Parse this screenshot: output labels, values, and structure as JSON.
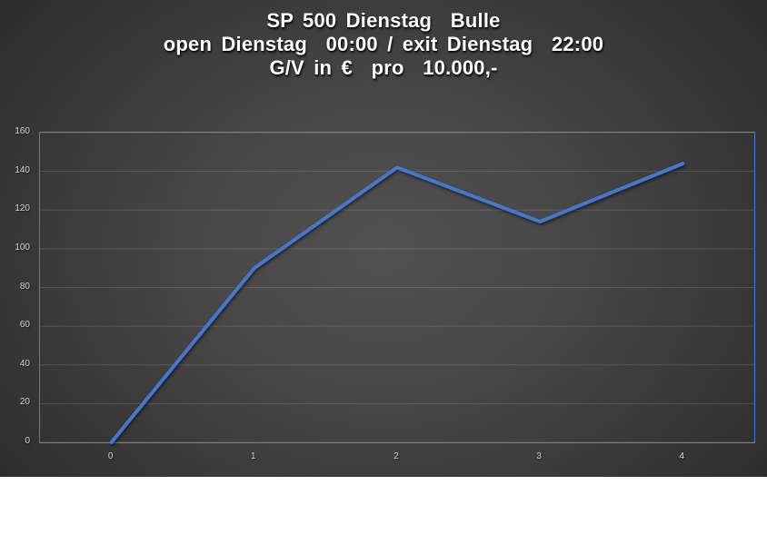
{
  "title": {
    "lines": [
      "SP 500 Dienstag  Bulle",
      "open Dienstag  00:00 / exit Dienstag  22:00",
      "G/V in €  pro  10.000,-"
    ]
  },
  "colors": {
    "title_text": "#FFFFFF",
    "tick_label": "#D6D6D6",
    "line": "#4676CE",
    "plot_border": "#4A7CD6",
    "gridline": "rgba(255,255,255,0.14)",
    "slide_background_center": "#515151",
    "slide_background_edge": "#262626"
  },
  "chart_data": {
    "type": "line",
    "title": "SP 500 Dienstag Bulle — open Dienstag 00:00 / exit Dienstag 22:00 — G/V in € pro 10.000,-",
    "categories": [
      "0",
      "1",
      "2",
      "3",
      "4"
    ],
    "series": [
      {
        "name": "G/V in € pro 10.000,-",
        "values": [
          0,
          90,
          142,
          114,
          144
        ]
      }
    ],
    "xlabel": "",
    "ylabel": "",
    "ylim": [
      0,
      160
    ],
    "ytick_step": 20,
    "yticks": [
      0,
      20,
      40,
      60,
      80,
      100,
      120,
      140,
      160
    ],
    "grid": true,
    "legend": false,
    "legend_position": "none"
  }
}
